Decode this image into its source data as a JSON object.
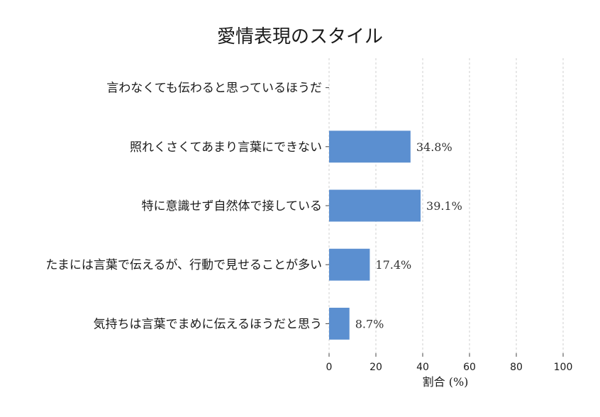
{
  "chart_data": {
    "type": "bar",
    "orientation": "horizontal",
    "title": "愛情表現のスタイル",
    "xlabel": "割合 (%)",
    "ylabel": "",
    "xlim": [
      0,
      100
    ],
    "xticks": [
      0,
      20,
      40,
      60,
      80,
      100
    ],
    "grid": true,
    "bar_color": "#5b8fd0",
    "categories": [
      "言わなくても伝わると思っているほうだ",
      "照れくさくてあまり言葉にできない",
      "特に意識せず自然体で接している",
      "たまには言葉で伝えるが、行動で見せることが多い",
      "気持ちは言葉でまめに伝えるほうだと思う"
    ],
    "values": [
      0,
      34.8,
      39.1,
      17.4,
      8.7
    ],
    "value_labels": [
      "",
      "34.8%",
      "39.1%",
      "17.4%",
      "8.7%"
    ]
  }
}
